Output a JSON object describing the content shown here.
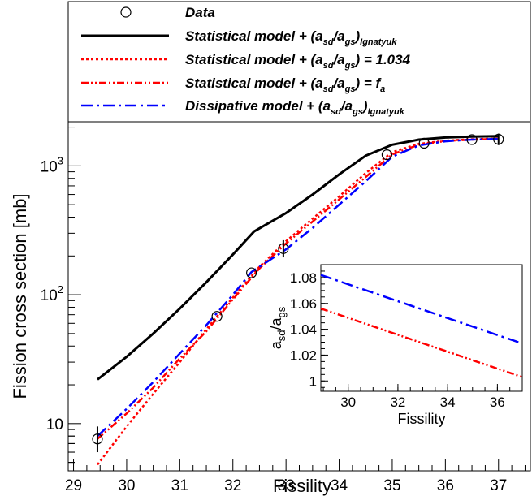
{
  "chart_data": [
    {
      "type": "line",
      "xlabel": "Fissility",
      "ylabel": "Fission cross section [mb]",
      "yscale": "log",
      "xlim": [
        28.9,
        37.6
      ],
      "ylim": [
        4.3,
        2200
      ],
      "x_ticks": [
        "29",
        "30",
        "31",
        "32",
        "33",
        "34",
        "35",
        "36",
        "37"
      ],
      "y_ticks": [
        {
          "value": 10,
          "label": "10"
        },
        {
          "value": 100,
          "label": "10²"
        },
        {
          "value": 1000,
          "label": "10³"
        }
      ],
      "legend_position": "top",
      "legend": [
        {
          "kind": "markers",
          "text": "Data",
          "sub": "",
          "after": ""
        },
        {
          "kind": "line",
          "style": "solid",
          "color": "#000000",
          "text": "Statistical model + (a",
          "sub": "sd",
          "text2": "/a",
          "sub2": "gs",
          "text3": ")",
          "sub3": "Ignatyuk"
        },
        {
          "kind": "line",
          "style": "dotted",
          "color": "#ff0000",
          "text": "Statistical model + (a",
          "sub": "sd",
          "text2": "/a",
          "sub2": "gs",
          "text3": ") = 1.034",
          "sub3": ""
        },
        {
          "kind": "line",
          "style": "dashdotdot",
          "color": "#ff0000",
          "text": "Statistical model + (a",
          "sub": "sd",
          "text2": "/a",
          "sub2": "gs",
          "text3": ") = f",
          "sub3": "a"
        },
        {
          "kind": "line",
          "style": "dashdot",
          "color": "#0000ff",
          "text": "Dissipative model + (a",
          "sub": "sd",
          "text2": "/a",
          "sub2": "gs",
          "text3": ")",
          "sub3": "Ignatyuk"
        }
      ],
      "data_points": [
        {
          "x": 29.45,
          "y": 7.6,
          "err_low": 6.0,
          "err_high": 9.5
        },
        {
          "x": 31.7,
          "y": 68
        },
        {
          "x": 32.35,
          "y": 148
        },
        {
          "x": 32.95,
          "y": 228,
          "err_low": 195,
          "err_high": 265
        },
        {
          "x": 34.9,
          "y": 1220
        },
        {
          "x": 35.6,
          "y": 1500
        },
        {
          "x": 36.5,
          "y": 1600
        },
        {
          "x": 37.0,
          "y": 1610,
          "err_low": 1450,
          "err_high": 1780
        }
      ],
      "series": [
        {
          "style": "solid",
          "color": "#000000",
          "x": [
            29.45,
            30.0,
            30.5,
            31.0,
            31.5,
            32.0,
            32.4,
            33.0,
            33.5,
            34.0,
            34.5,
            35.0,
            35.5,
            36.0,
            36.5,
            37.0
          ],
          "y": [
            22,
            33,
            50,
            78,
            125,
            205,
            310,
            430,
            600,
            860,
            1200,
            1460,
            1600,
            1660,
            1690,
            1700
          ]
        },
        {
          "style": "dotted",
          "color": "#ff0000",
          "x": [
            29.45,
            30.0,
            30.5,
            31.0,
            31.5,
            32.0,
            32.5,
            33.0,
            33.5,
            34.0,
            34.5,
            35.0,
            35.5,
            36.0,
            36.5,
            37.0
          ],
          "y": [
            4.8,
            9.5,
            17,
            30,
            54,
            95,
            165,
            260,
            390,
            580,
            880,
            1280,
            1480,
            1570,
            1610,
            1630
          ]
        },
        {
          "style": "dashdotdot",
          "color": "#ff0000",
          "x": [
            29.45,
            30.0,
            30.5,
            31.0,
            31.5,
            32.0,
            32.5,
            33.0,
            33.5,
            34.0,
            34.5,
            35.0,
            35.5,
            36.0,
            36.5,
            37.0
          ],
          "y": [
            7.6,
            12,
            19,
            32,
            52,
            92,
            160,
            250,
            370,
            550,
            820,
            1230,
            1460,
            1560,
            1600,
            1620
          ]
        },
        {
          "style": "dashdot",
          "color": "#0000ff",
          "x": [
            29.45,
            30.0,
            30.5,
            31.0,
            31.5,
            32.0,
            32.35,
            33.0,
            33.5,
            34.0,
            34.5,
            35.0,
            35.5,
            36.0,
            36.5,
            37.0
          ],
          "y": [
            8.0,
            13,
            21,
            35,
            58,
            100,
            150,
            225,
            330,
            500,
            760,
            1180,
            1440,
            1550,
            1600,
            1620
          ]
        }
      ]
    },
    {
      "type": "line",
      "xlabel": "Fissility",
      "ylabel": "a",
      "ylabel_sub": "sd",
      "ylabel2": "/a",
      "ylabel_sub2": "gs",
      "xlim": [
        28.9,
        37.0
      ],
      "ylim": [
        0.992,
        1.09
      ],
      "x_ticks": [
        "30",
        "32",
        "34",
        "36"
      ],
      "y_ticks": [
        "1",
        "1.02",
        "1.04",
        "1.06",
        "1.08"
      ],
      "series": [
        {
          "style": "dashdot",
          "color": "#0000ff",
          "x": [
            28.9,
            37.0
          ],
          "y": [
            1.082,
            1.029
          ]
        },
        {
          "style": "dashdotdot",
          "color": "#ff0000",
          "x": [
            28.9,
            37.0
          ],
          "y": [
            1.056,
            1.003
          ]
        }
      ]
    }
  ]
}
